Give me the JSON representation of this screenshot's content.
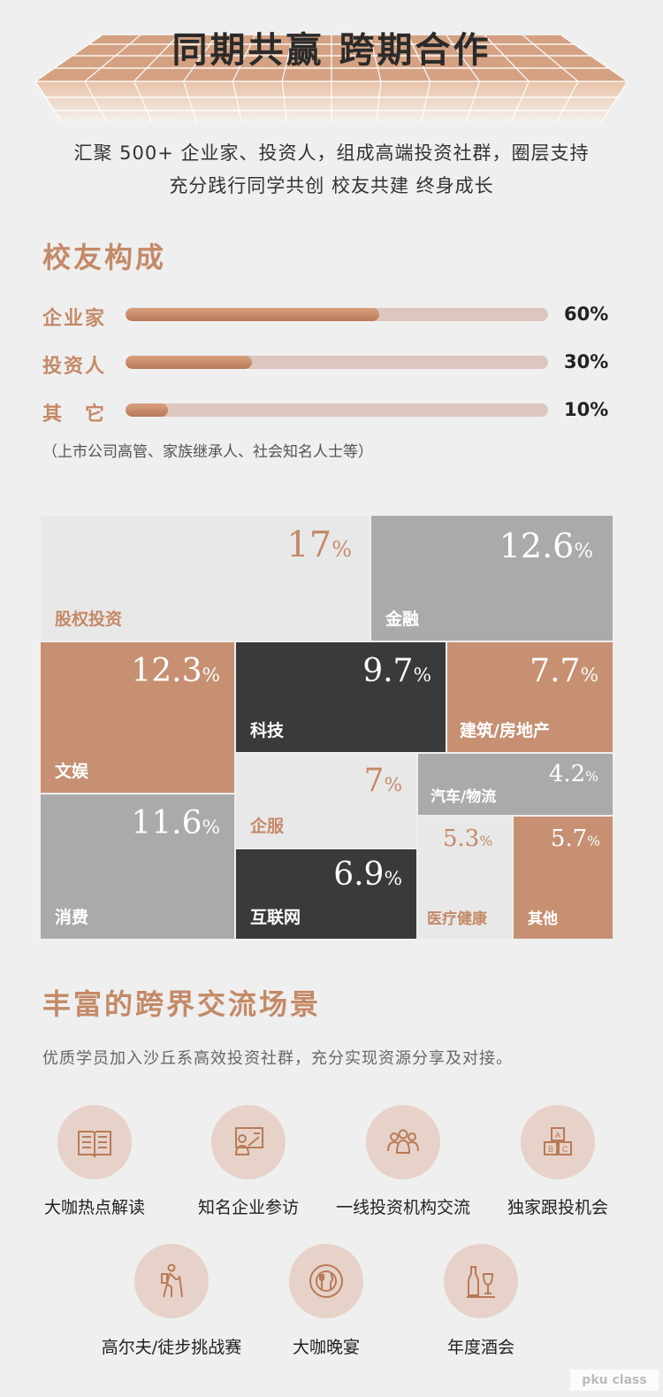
{
  "title": "同期共赢 跨期合作",
  "intro": [
    "汇聚 500+ 企业家、投资人，组成高端投资社群，圈层支持",
    "充分践行同学共创 校友共建 终身成长"
  ],
  "composition": {
    "heading": "校友构成",
    "bars": [
      {
        "label": "企业家",
        "value": "60%",
        "fraction": 0.6
      },
      {
        "label": "投资人",
        "value": "30%",
        "fraction": 0.3
      },
      {
        "label": "其　它",
        "value": "10%",
        "fraction": 0.1
      }
    ],
    "note": "（上市公司高管、家族继承人、社会知名人士等）"
  },
  "treemap": [
    {
      "label": "股权投资",
      "value": "17",
      "unit": "%"
    },
    {
      "label": "金融",
      "value": "12.6",
      "unit": "%"
    },
    {
      "label": "文娱",
      "value": "12.3",
      "unit": "%"
    },
    {
      "label": "科技",
      "value": "9.7",
      "unit": "%"
    },
    {
      "label": "建筑/房地产",
      "value": "7.7",
      "unit": "%"
    },
    {
      "label": "消费",
      "value": "11.6",
      "unit": "%"
    },
    {
      "label": "企服",
      "value": "7",
      "unit": "%"
    },
    {
      "label": "汽车/物流",
      "value": "4.2",
      "unit": "%"
    },
    {
      "label": "互联网",
      "value": "6.9",
      "unit": "%"
    },
    {
      "label": "医疗健康",
      "value": "5.3",
      "unit": "%"
    },
    {
      "label": "其他",
      "value": "5.7",
      "unit": "%"
    }
  ],
  "scenes": {
    "heading": "丰富的跨界交流场景",
    "subtitle": "优质学员加入沙丘系高效投资社群，充分实现资源分享及对接。",
    "items": [
      {
        "label": "大咖热点解读",
        "icon": "book-icon"
      },
      {
        "label": "知名企业参访",
        "icon": "presentation-icon"
      },
      {
        "label": "一线投资机构交流",
        "icon": "group-icon"
      },
      {
        "label": "独家跟投机会",
        "icon": "abc-blocks-icon"
      },
      {
        "label": "高尔夫/徒步挑战赛",
        "icon": "hiker-icon"
      },
      {
        "label": "大咖晚宴",
        "icon": "dinner-plate-icon"
      },
      {
        "label": "年度酒会",
        "icon": "wine-icon"
      }
    ]
  },
  "watermark": "pku class",
  "colors": {
    "accent": "#c48a68",
    "copper_cell": "#c79072",
    "gray_cell": "#aaaaaa",
    "dark_cell": "#3a3a3a",
    "light_cell": "#e8e8e8"
  }
}
